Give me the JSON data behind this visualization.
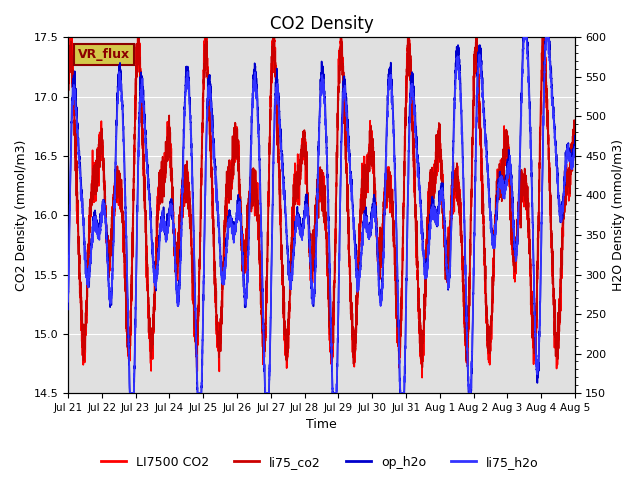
{
  "title": "CO2 Density",
  "xlabel": "Time",
  "ylabel_left": "CO2 Density (mmol/m3)",
  "ylabel_right": "H2O Density (mmol/m3)",
  "ylim_left": [
    14.5,
    17.5
  ],
  "ylim_right": [
    150,
    600
  ],
  "x_tick_labels": [
    "Jul 21",
    "Jul 22",
    "Jul 23",
    "Jul 24",
    "Jul 25",
    "Jul 26",
    "Jul 27",
    "Jul 28",
    "Jul 29",
    "Jul 30",
    "Jul 31",
    "Aug 1",
    "Aug 2",
    "Aug 3",
    "Aug 4",
    "Aug 5"
  ],
  "bg_color": "#e0e0e0",
  "fig_bg": "#ffffff",
  "legend_entries": [
    "LI7500 CO2",
    "li75_co2",
    "op_h2o",
    "li75_h2o"
  ],
  "vr_flux_label": "VR_flux",
  "vr_flux_bg": "#d4c84a",
  "vr_flux_border": "#8b0000",
  "vr_flux_text": "#8b0000",
  "n_points": 4320,
  "days": 15,
  "co2_base": 16.0,
  "co2_amp": 1.0,
  "h2o_base": 370,
  "h2o_amp": 170,
  "line_color_red1": "#ff0000",
  "line_color_red2": "#cc0000",
  "line_color_blue1": "#0000cc",
  "line_color_blue2": "#3333ff",
  "line_width": 1.2,
  "figsize": [
    6.4,
    4.8
  ],
  "dpi": 100
}
